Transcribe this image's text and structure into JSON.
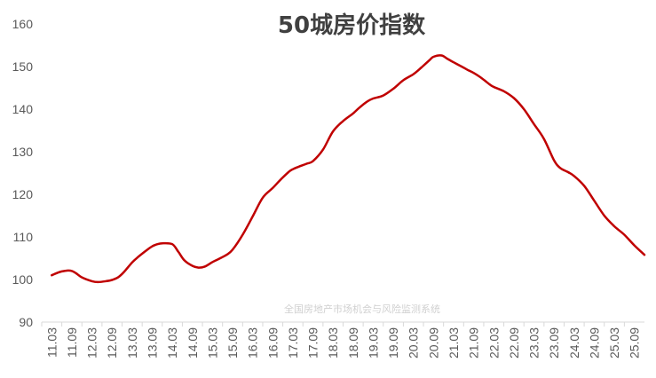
{
  "chart_data": {
    "type": "line",
    "title": "50城房价指数",
    "watermark": "全国房地产市场机会与风险监测系统",
    "xlabel": "",
    "ylabel": "",
    "ylim": [
      90,
      160
    ],
    "yticks": [
      90,
      100,
      110,
      120,
      130,
      140,
      150,
      160
    ],
    "categories": [
      "11.03",
      "11.09",
      "12.03",
      "12.09",
      "13.03",
      "13.09",
      "14.03",
      "14.09",
      "15.03",
      "15.09",
      "16.03",
      "16.09",
      "17.03",
      "17.09",
      "18.03",
      "18.09",
      "19.03",
      "19.09",
      "20.03",
      "20.09",
      "21.03",
      "21.09",
      "22.03",
      "22.09",
      "23.03",
      "23.09",
      "24.03",
      "24.09",
      "25.03",
      "25.09"
    ],
    "grid": false,
    "legend": "none",
    "series": [
      {
        "color": "#c00000",
        "x": [
          0,
          0.3,
          0.5,
          0.8,
          1.0,
          1.2,
          1.5,
          2.0,
          2.3,
          2.7,
          3.0,
          3.3,
          3.6,
          4.0,
          4.3,
          4.7,
          5.0,
          5.2,
          5.5,
          6.0,
          6.3,
          6.6,
          7.0,
          7.3,
          7.6,
          8.0,
          8.3,
          8.7,
          9.0,
          9.5,
          10.0,
          10.5,
          11.0,
          11.4,
          11.8,
          12.0,
          12.3,
          12.7,
          13.0,
          13.5,
          14.0,
          14.5,
          15.0,
          15.3,
          15.7,
          16.0,
          16.5,
          17.0,
          17.5,
          18.0,
          18.4,
          18.8,
          19.0,
          19.4,
          19.7,
          20.0,
          20.4,
          20.7,
          21.0,
          21.3,
          21.5,
          21.8,
          22.0,
          22.5,
          23.0,
          23.5,
          24.0,
          24.5,
          25.0,
          25.3,
          25.7,
          26.0,
          26.5,
          27.0,
          27.5,
          28.0,
          28.5,
          29.0,
          29.5
        ],
        "values": [
          101.0,
          101.6,
          101.9,
          102.1,
          102.0,
          101.5,
          100.5,
          99.6,
          99.4,
          99.6,
          99.9,
          100.5,
          101.8,
          104.0,
          105.3,
          106.8,
          107.8,
          108.2,
          108.5,
          108.3,
          106.5,
          104.5,
          103.2,
          102.8,
          103.0,
          104.1,
          104.8,
          105.8,
          107.0,
          110.5,
          114.8,
          119.2,
          121.5,
          123.5,
          125.3,
          125.9,
          126.5,
          127.2,
          127.8,
          130.5,
          134.8,
          137.2,
          139.0,
          140.3,
          141.8,
          142.5,
          143.2,
          144.8,
          146.8,
          148.2,
          149.8,
          151.5,
          152.3,
          152.6,
          151.8,
          151.0,
          150.0,
          149.2,
          148.5,
          147.6,
          146.9,
          145.8,
          145.2,
          144.2,
          142.6,
          140.0,
          136.5,
          133.0,
          128.0,
          126.2,
          125.2,
          124.3,
          122.0,
          118.5,
          115.0,
          112.5,
          110.5,
          108.0,
          105.8
        ]
      }
    ]
  }
}
